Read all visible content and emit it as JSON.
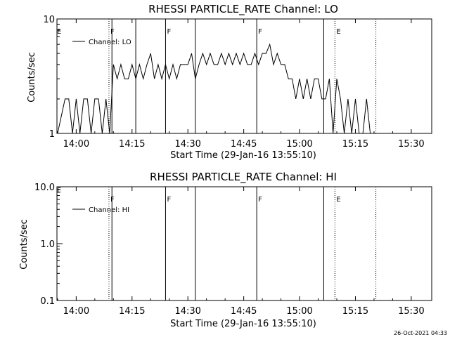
{
  "footer": {
    "timestamp": "26-Oct-2021 04:33"
  },
  "chart_data": [
    {
      "type": "line",
      "title": "RHESSI PARTICLE_RATE Channel: LO",
      "xlabel": "Start Time (29-Jan-16 13:55:10)",
      "ylabel": "Counts/sec",
      "yscale": "log",
      "ylim": [
        1,
        10
      ],
      "ytick_values": [
        1,
        10
      ],
      "ytick_labels": [
        "1",
        "10"
      ],
      "xlim": [
        -0.17,
        37.8
      ],
      "xtick_values": [
        5,
        20,
        35,
        50,
        65,
        80,
        95
      ],
      "xtick_labels": [
        "14:00",
        "14:15",
        "14:30",
        "14:45",
        "15:00",
        "15:15",
        "15:30"
      ],
      "legend": {
        "position": "top-left",
        "entries": [
          "Channel: LO"
        ]
      },
      "flag_lines": [
        {
          "x": 13.8,
          "style": "dotted",
          "label": "F"
        },
        {
          "x": 14.6,
          "style": "solid",
          "label": ""
        },
        {
          "x": 21.0,
          "style": "solid",
          "label": ""
        },
        {
          "x": 29.0,
          "style": "solid",
          "label": "F"
        },
        {
          "x": 37.0,
          "style": "solid",
          "label": ""
        },
        {
          "x": 53.5,
          "style": "solid",
          "label": "F"
        },
        {
          "x": 71.5,
          "style": "solid",
          "label": ""
        },
        {
          "x": 74.5,
          "style": "dotted",
          "label": "E"
        },
        {
          "x": 85.5,
          "style": "dotted",
          "label": ""
        }
      ],
      "edge_label": "E",
      "series": [
        {
          "values_x_minutes_from_1355": [
            0,
            2,
            3,
            4,
            5,
            6,
            7,
            8,
            9,
            10,
            11,
            12,
            13,
            14,
            15,
            16,
            17,
            18,
            19,
            20,
            21,
            22,
            23,
            24,
            25,
            26,
            27,
            28,
            29,
            30,
            31,
            32,
            33,
            34,
            35,
            36,
            37,
            38,
            39,
            40,
            41,
            42,
            43,
            44,
            45,
            46,
            47,
            48,
            49,
            50,
            51,
            52,
            53,
            54,
            55,
            56,
            57,
            58,
            59,
            60,
            61,
            62,
            63,
            64,
            65,
            66,
            67,
            68,
            69,
            70,
            71,
            72,
            73,
            74,
            75,
            76,
            77,
            78,
            79,
            80,
            81,
            82,
            83,
            84,
            85
          ],
          "values_y_counts_per_sec": [
            1,
            2,
            2,
            1,
            2,
            1,
            2,
            2,
            1,
            2,
            2,
            1,
            2,
            1,
            4,
            3,
            4,
            3,
            3,
            4,
            3,
            4,
            3,
            4,
            5,
            3,
            4,
            3,
            4,
            3,
            4,
            3,
            4,
            4,
            4,
            5,
            3,
            4,
            5,
            4,
            5,
            4,
            4,
            5,
            4,
            5,
            4,
            5,
            4,
            5,
            4,
            4,
            5,
            4,
            5,
            5,
            6,
            4,
            5,
            4,
            4,
            3,
            3,
            2,
            3,
            2,
            3,
            2,
            3,
            3,
            2,
            2,
            3,
            1,
            3,
            2,
            1,
            2,
            1,
            2,
            1,
            1,
            2,
            1,
            1
          ]
        }
      ]
    },
    {
      "type": "line",
      "title": "RHESSI PARTICLE_RATE Channel: HI",
      "xlabel": "Start Time (29-Jan-16 13:55:10)",
      "ylabel": "Counts/sec",
      "yscale": "log",
      "ylim": [
        0.1,
        10
      ],
      "ytick_values": [
        0.1,
        1,
        10
      ],
      "ytick_labels": [
        "0.1",
        "1.0",
        "10.0"
      ],
      "xlim": [
        -0.17,
        37.8
      ],
      "xtick_values": [
        5,
        20,
        35,
        50,
        65,
        80,
        95
      ],
      "xtick_labels": [
        "14:00",
        "14:15",
        "14:30",
        "14:45",
        "15:00",
        "15:15",
        "15:30"
      ],
      "legend": {
        "position": "top-left",
        "entries": [
          "Channel: HI"
        ]
      },
      "flag_lines": [
        {
          "x": 13.8,
          "style": "dotted",
          "label": "F"
        },
        {
          "x": 14.6,
          "style": "solid",
          "label": ""
        },
        {
          "x": 29.0,
          "style": "solid",
          "label": "F"
        },
        {
          "x": 37.0,
          "style": "solid",
          "label": ""
        },
        {
          "x": 53.5,
          "style": "solid",
          "label": "F"
        },
        {
          "x": 71.5,
          "style": "solid",
          "label": ""
        },
        {
          "x": 74.5,
          "style": "dotted",
          "label": "E"
        },
        {
          "x": 85.5,
          "style": "dotted",
          "label": ""
        }
      ],
      "edge_label": "E",
      "series": []
    }
  ]
}
